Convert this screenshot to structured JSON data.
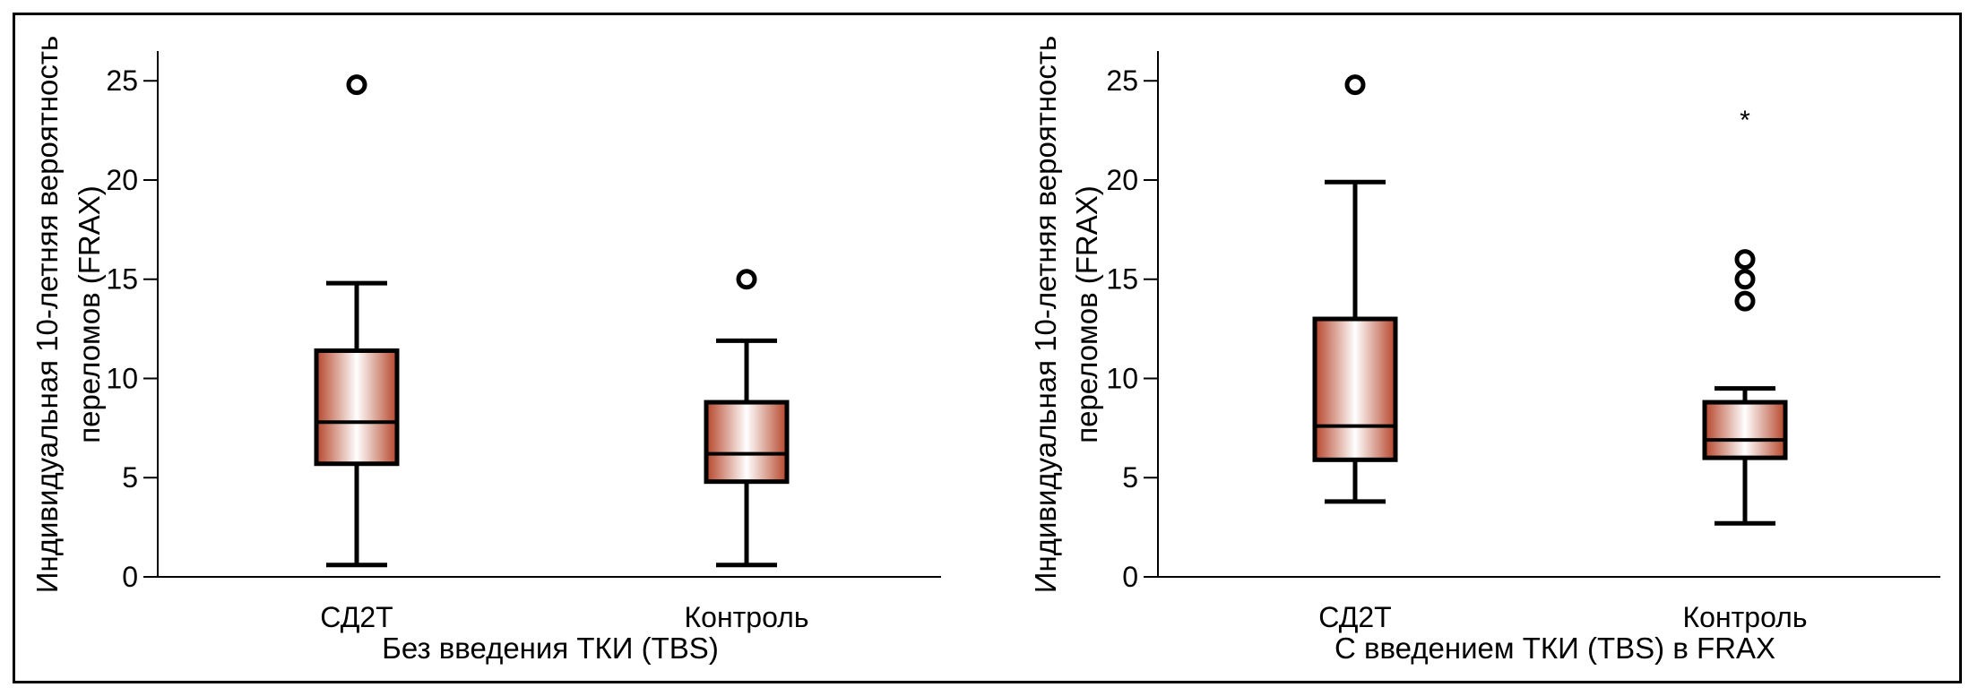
{
  "chart_data": [
    {
      "type": "box",
      "xlabel": "Без введения ТКИ (TBS)",
      "ylabel_lines": [
        "Индивидуальная 10-летняя вероятность",
        "переломов (FRAX)"
      ],
      "ylim": [
        0,
        26.5
      ],
      "yticks": [
        "0",
        "5",
        "10",
        "15",
        "20",
        "25"
      ],
      "groups": [
        {
          "name": "СД2Т",
          "whisker_low": 0.6,
          "q1": 5.7,
          "median": 7.8,
          "q3": 11.4,
          "whisker_high": 14.8,
          "outliers": [
            24.8
          ],
          "extremes": []
        },
        {
          "name": "Контроль",
          "whisker_low": 0.6,
          "q1": 4.8,
          "median": 6.2,
          "q3": 8.8,
          "whisker_high": 11.9,
          "outliers": [
            15.0
          ],
          "extremes": []
        }
      ]
    },
    {
      "type": "box",
      "xlabel": "С введением ТКИ (TBS) в FRAX",
      "ylabel_lines": [
        "Индивидуальная 10-летняя вероятность",
        "переломов (FRAX)"
      ],
      "ylim": [
        0,
        26.5
      ],
      "yticks": [
        "0",
        "5",
        "10",
        "15",
        "20",
        "25"
      ],
      "groups": [
        {
          "name": "СД2Т",
          "whisker_low": 3.8,
          "q1": 5.9,
          "median": 7.6,
          "q3": 13.0,
          "whisker_high": 19.9,
          "outliers": [
            24.8
          ],
          "extremes": []
        },
        {
          "name": "Контроль",
          "whisker_low": 2.7,
          "q1": 6.0,
          "median": 6.9,
          "q3": 8.8,
          "whisker_high": 9.5,
          "outliers": [
            16.0,
            15.0,
            13.9
          ],
          "extremes": [
            23.2
          ]
        }
      ]
    }
  ],
  "colors": {
    "box_edge": "#b5452a",
    "box_center": "#ffffff",
    "line": "#000000"
  },
  "extreme_marker": "*"
}
